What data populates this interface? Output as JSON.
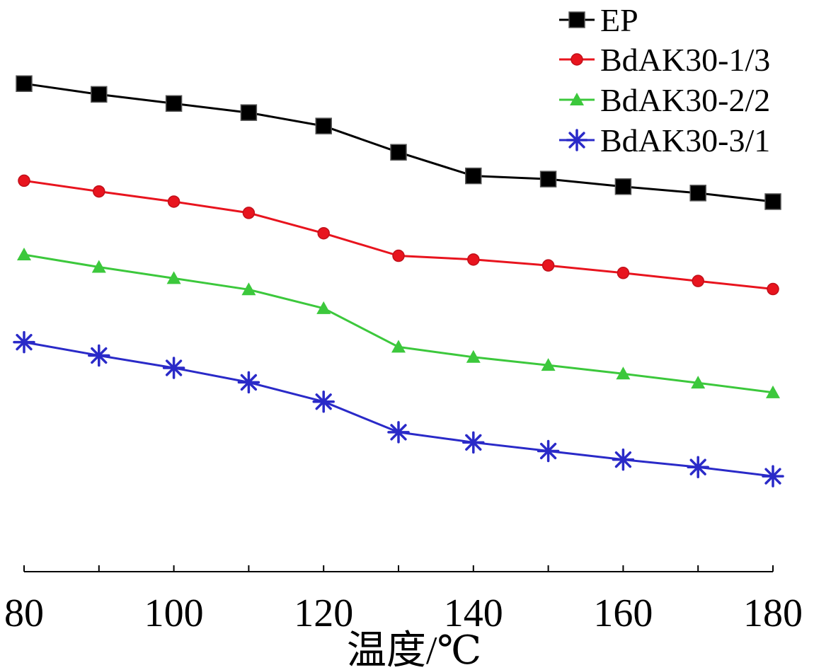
{
  "chart_data": {
    "type": "line",
    "xlabel": "温度/℃",
    "ylabel": "",
    "title": "",
    "x": [
      80,
      90,
      100,
      110,
      120,
      130,
      140,
      150,
      160,
      170,
      180
    ],
    "x_ticks": [
      "80",
      "100",
      "120",
      "140",
      "160",
      "180"
    ],
    "xlim": [
      80,
      180
    ],
    "y_axis_visible": false,
    "ylim": [
      0,
      10
    ],
    "grid": false,
    "legend_position": "top-right",
    "series": [
      {
        "name": "EP",
        "color": "#000000",
        "marker": "square",
        "values": [
          9.1,
          8.9,
          8.73,
          8.56,
          8.31,
          7.82,
          7.38,
          7.32,
          7.18,
          7.06,
          6.9
        ]
      },
      {
        "name": "BdAK30-1/3",
        "color": "#e8141e",
        "marker": "circle",
        "values": [
          7.29,
          7.09,
          6.9,
          6.69,
          6.31,
          5.89,
          5.82,
          5.71,
          5.57,
          5.42,
          5.27
        ]
      },
      {
        "name": "BdAK30-2/2",
        "color": "#3cc83c",
        "marker": "triangle",
        "values": [
          5.91,
          5.68,
          5.47,
          5.26,
          4.91,
          4.19,
          4.0,
          3.85,
          3.69,
          3.52,
          3.34
        ]
      },
      {
        "name": "BdAK30-3/1",
        "color": "#2a2ac8",
        "marker": "asterisk",
        "values": [
          4.28,
          4.03,
          3.8,
          3.53,
          3.17,
          2.6,
          2.41,
          2.25,
          2.09,
          1.95,
          1.78
        ]
      }
    ]
  }
}
